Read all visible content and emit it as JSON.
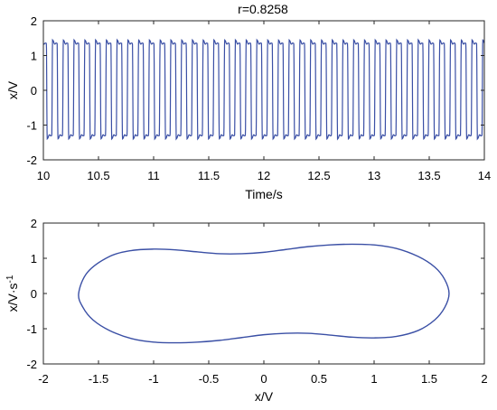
{
  "chart_data": [
    {
      "type": "line",
      "title": "r=0.8258",
      "xlabel": "Time/s",
      "ylabel": "x/V",
      "xlim": [
        10,
        14
      ],
      "ylim": [
        -2,
        2
      ],
      "xticks": [
        10,
        10.5,
        11,
        11.5,
        12,
        12.5,
        13,
        13.5,
        14
      ],
      "yticks": [
        -2,
        -1,
        0,
        1,
        2
      ],
      "grid": false,
      "color": "#3a4fa5",
      "signal": {
        "shape": "square-like oscillation with overshoot",
        "cycles_shown": 41,
        "approx_high": 1.35,
        "approx_low": -1.3,
        "approx_peak": 1.45,
        "approx_trough": -1.4
      }
    },
    {
      "type": "line",
      "title": "",
      "xlabel": "x/V",
      "ylabel": "x/V·s",
      "ylabel_superscript": "-1",
      "xlim": [
        -2,
        2
      ],
      "ylim": [
        -2,
        2
      ],
      "xticks": [
        -2,
        -1.5,
        -1,
        -0.5,
        0,
        0.5,
        1,
        1.5,
        2
      ],
      "yticks": [
        -2,
        -1,
        0,
        1,
        2
      ],
      "grid": false,
      "color": "#3a4fa5",
      "x": [
        -1.68,
        -1.6,
        -1.4,
        -1.2,
        -1.0,
        -0.8,
        -0.6,
        -0.4,
        -0.2,
        0.0,
        0.2,
        0.4,
        0.6,
        0.8,
        1.0,
        1.2,
        1.4,
        1.55,
        1.64,
        1.68,
        1.64,
        1.55,
        1.4,
        1.2,
        1.0,
        0.8,
        0.6,
        0.4,
        0.2,
        0.0,
        -0.2,
        -0.4,
        -0.6,
        -0.8,
        -1.0,
        -1.2,
        -1.4,
        -1.55,
        -1.64,
        -1.68
      ],
      "y": [
        0.0,
        0.6,
        1.05,
        1.22,
        1.26,
        1.24,
        1.18,
        1.13,
        1.13,
        1.17,
        1.25,
        1.33,
        1.38,
        1.4,
        1.38,
        1.28,
        1.05,
        0.75,
        0.4,
        0.0,
        -0.4,
        -0.75,
        -1.05,
        -1.22,
        -1.26,
        -1.24,
        -1.18,
        -1.13,
        -1.13,
        -1.17,
        -1.25,
        -1.33,
        -1.38,
        -1.4,
        -1.38,
        -1.28,
        -1.05,
        -0.75,
        -0.4,
        0.0
      ]
    }
  ]
}
